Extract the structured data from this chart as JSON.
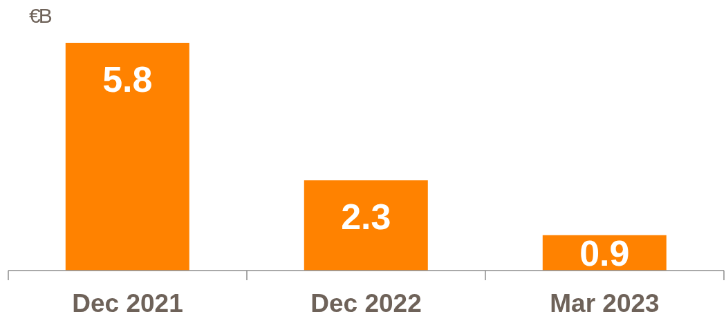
{
  "chart_data": {
    "type": "bar",
    "ylabel": "€B",
    "categories": [
      "Dec 2021",
      "Dec 2022",
      "Mar 2023"
    ],
    "values": [
      5.8,
      2.3,
      0.9
    ],
    "color": "#ff8200",
    "data_labels": true
  }
}
